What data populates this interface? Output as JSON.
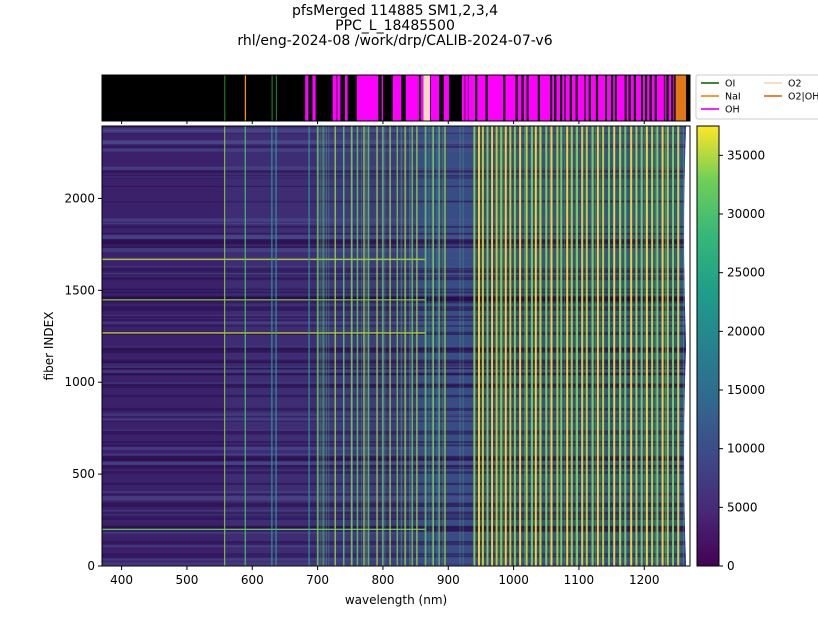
{
  "title_lines": [
    "pfsMerged  114885 SM1,2,3,4",
    "PPC_L_18485500",
    "rhl/eng-2024-08  /work/drp/CALIB-2024-07-v6"
  ],
  "chart_data": {
    "type": "heatmap",
    "xlabel": "wavelength (nm)",
    "ylabel": "fiber INDEX",
    "xlim": [
      370,
      1270
    ],
    "ylim": [
      0,
      2394
    ],
    "xticks": [
      400,
      500,
      600,
      700,
      800,
      900,
      1000,
      1100,
      1200
    ],
    "yticks": [
      0,
      500,
      1000,
      1500,
      2000
    ],
    "colorbar": {
      "colormap": "viridis",
      "range": [
        0,
        37500
      ],
      "ticks": [
        0,
        5000,
        10000,
        15000,
        20000,
        25000,
        30000,
        35000
      ]
    },
    "legend": [
      {
        "label": "OI",
        "color": "#1e7a1e"
      },
      {
        "label": "O2",
        "color": "#f3dcc2"
      },
      {
        "label": "NaI",
        "color": "#ff8c1a"
      },
      {
        "label": "O2|OH",
        "color": "#e07818"
      },
      {
        "label": "OH",
        "color": "#ff00ff"
      }
    ],
    "line_strip": [
      {
        "type": "OI",
        "start": 557.0,
        "end": 558.0
      },
      {
        "type": "NaI",
        "start": 588.5,
        "end": 590.5
      },
      {
        "type": "OI",
        "start": 629.5,
        "end": 630.5
      },
      {
        "type": "OI",
        "start": 636.0,
        "end": 637.0
      },
      {
        "type": "OH",
        "start": 681,
        "end": 686
      },
      {
        "type": "OH",
        "start": 692,
        "end": 697
      },
      {
        "type": "OH",
        "start": 723,
        "end": 729
      },
      {
        "type": "OH",
        "start": 730,
        "end": 735
      },
      {
        "type": "OH",
        "start": 742,
        "end": 746
      },
      {
        "type": "OH",
        "start": 760,
        "end": 793
      },
      {
        "type": "OH",
        "start": 798,
        "end": 800
      },
      {
        "type": "OH",
        "start": 815,
        "end": 828
      },
      {
        "type": "OH",
        "start": 835,
        "end": 855
      },
      {
        "type": "OH",
        "start": 858,
        "end": 862
      },
      {
        "type": "O2",
        "start": 862,
        "end": 872
      },
      {
        "type": "OH",
        "start": 873,
        "end": 886
      },
      {
        "type": "OH",
        "start": 893,
        "end": 901
      },
      {
        "type": "OH",
        "start": 921,
        "end": 925
      },
      {
        "type": "OH",
        "start": 926,
        "end": 930
      },
      {
        "type": "OH",
        "start": 931,
        "end": 1020
      },
      {
        "type": "OH",
        "start": 1023,
        "end": 1056
      },
      {
        "type": "OH",
        "start": 1059,
        "end": 1078
      },
      {
        "type": "OH",
        "start": 1080,
        "end": 1095
      },
      {
        "type": "OH",
        "start": 1098,
        "end": 1108
      },
      {
        "type": "OH",
        "start": 1110,
        "end": 1140
      },
      {
        "type": "OH",
        "start": 1143,
        "end": 1155
      },
      {
        "type": "OH",
        "start": 1158,
        "end": 1170
      },
      {
        "type": "OH",
        "start": 1173,
        "end": 1195
      },
      {
        "type": "OH",
        "start": 1198,
        "end": 1230
      },
      {
        "type": "OH",
        "start": 1232,
        "end": 1246
      },
      {
        "type": "O2|OH",
        "start": 1248,
        "end": 1264
      }
    ],
    "bright_lines_nm": [
      557.7,
      589.3,
      630.0,
      636.4,
      687,
      700,
      727,
      740,
      752,
      761,
      771,
      778,
      791,
      800,
      811,
      822,
      834,
      845,
      852,
      865,
      877,
      886,
      895,
      940,
      947,
      953,
      960,
      967,
      974,
      981,
      988,
      995,
      1002,
      1010,
      1020,
      1028,
      1034,
      1041,
      1050,
      1058,
      1067,
      1073,
      1082,
      1089,
      1097,
      1105,
      1112,
      1121,
      1129,
      1137,
      1146,
      1154,
      1163,
      1171,
      1180,
      1188,
      1196,
      1204,
      1212,
      1220,
      1228,
      1236,
      1244,
      1252
    ]
  }
}
